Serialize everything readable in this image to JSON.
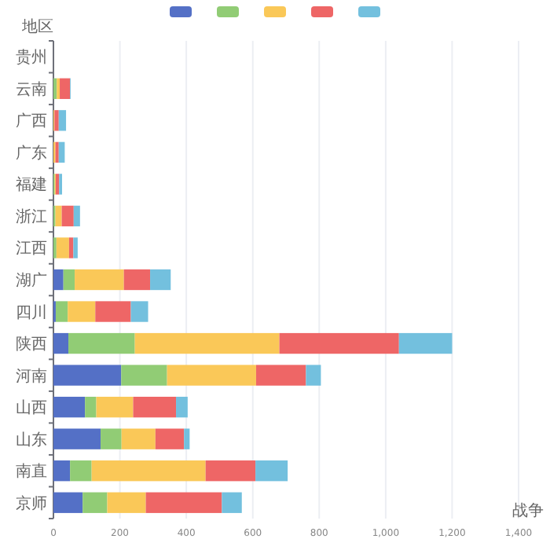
{
  "chart_data": {
    "type": "bar",
    "orientation": "horizontal",
    "stacked": true,
    "ylabel": "地区",
    "xlabel": "战争",
    "categories": [
      "贵州",
      "云南",
      "广西",
      "广东",
      "福建",
      "浙江",
      "江西",
      "湖广",
      "四川",
      "陕西",
      "河南",
      "山西",
      "山东",
      "南直",
      "京师"
    ],
    "series": [
      {
        "color": "#5470c6",
        "values": [
          0,
          0,
          0,
          0,
          0,
          0,
          0,
          30,
          7,
          45,
          204,
          95,
          142,
          50,
          88
        ]
      },
      {
        "color": "#91cc75",
        "values": [
          0,
          10,
          0,
          0,
          4,
          6,
          9,
          34,
          36,
          200,
          138,
          34,
          63,
          65,
          74
        ]
      },
      {
        "color": "#fac858",
        "values": [
          0,
          9,
          3,
          6,
          3,
          19,
          38,
          148,
          83,
          435,
          268,
          111,
          102,
          343,
          116
        ]
      },
      {
        "color": "#ee6666",
        "values": [
          0,
          31,
          13,
          10,
          10,
          36,
          13,
          79,
          107,
          360,
          150,
          129,
          86,
          150,
          229
        ]
      },
      {
        "color": "#73c0de",
        "values": [
          0,
          2,
          22,
          18,
          9,
          19,
          13,
          62,
          52,
          160,
          45,
          35,
          17,
          97,
          60
        ]
      }
    ],
    "xlim": [
      0,
      1400
    ],
    "xticks": [
      0,
      200,
      400,
      600,
      800,
      {
        "value": 1000,
        "label": "1,000"
      },
      {
        "value": 1200,
        "label": "1,200"
      },
      {
        "value": 1400,
        "label": "1,400"
      }
    ],
    "grid": "x"
  }
}
